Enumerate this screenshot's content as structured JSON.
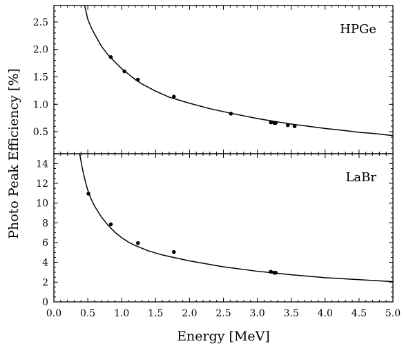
{
  "chart_data": {
    "type": "scatter",
    "xlabel": "Energy [MeV]",
    "ylabel": "Photo Peak Efficiency [%]",
    "xlim": [
      0.0,
      5.0
    ],
    "xticks": [
      "0.0",
      "0.5",
      "1.0",
      "1.5",
      "2.0",
      "2.5",
      "3.0",
      "3.5",
      "4.0",
      "4.5",
      "5.0"
    ],
    "xtick_values": [
      0.0,
      0.5,
      1.0,
      1.5,
      2.0,
      2.5,
      3.0,
      3.5,
      4.0,
      4.5,
      5.0
    ],
    "panels": [
      {
        "label": "HPGe",
        "ylim": [
          0.1,
          2.8
        ],
        "yticks": [
          "0.5",
          "1.0",
          "1.5",
          "2.0",
          "2.5"
        ],
        "ytick_values": [
          0.5,
          1.0,
          1.5,
          2.0,
          2.5
        ],
        "points": {
          "x": [
            0.84,
            1.04,
            1.24,
            1.77,
            2.61,
            3.2,
            3.25,
            3.27,
            3.45,
            3.55
          ],
          "y": [
            1.86,
            1.6,
            1.45,
            1.14,
            0.83,
            0.67,
            0.66,
            0.66,
            0.62,
            0.6
          ]
        },
        "curve": {
          "x": [
            0.45,
            0.5,
            0.55,
            0.6,
            0.7,
            0.8,
            0.9,
            1.0,
            1.1,
            1.2,
            1.3,
            1.5,
            1.7,
            2.0,
            2.3,
            2.6,
            3.0,
            3.5,
            4.0,
            4.3,
            4.5,
            4.7,
            5.0
          ],
          "y": [
            2.82,
            2.55,
            2.4,
            2.28,
            2.06,
            1.9,
            1.77,
            1.65,
            1.55,
            1.45,
            1.37,
            1.24,
            1.13,
            1.02,
            0.92,
            0.84,
            0.74,
            0.64,
            0.56,
            0.52,
            0.49,
            0.47,
            0.43
          ]
        }
      },
      {
        "label": "LaBr",
        "ylim": [
          0,
          15
        ],
        "yticks": [
          "0",
          "2",
          "4",
          "6",
          "8",
          "10",
          "12",
          "14"
        ],
        "ytick_values": [
          0,
          2,
          4,
          6,
          8,
          10,
          12,
          14
        ],
        "points": {
          "x": [
            0.51,
            0.84,
            1.24,
            1.77,
            3.2,
            3.25,
            3.27
          ],
          "y": [
            10.95,
            7.85,
            5.95,
            5.05,
            3.05,
            2.95,
            2.95
          ]
        },
        "curve": {
          "x": [
            0.38,
            0.42,
            0.46,
            0.5,
            0.55,
            0.6,
            0.7,
            0.8,
            0.9,
            1.0,
            1.1,
            1.2,
            1.4,
            1.6,
            1.8,
            2.0,
            2.5,
            3.0,
            3.5,
            4.0,
            4.5,
            5.0
          ],
          "y": [
            15.0,
            13.5,
            12.3,
            11.3,
            10.4,
            9.7,
            8.6,
            7.75,
            7.05,
            6.5,
            6.05,
            5.7,
            5.15,
            4.75,
            4.45,
            4.15,
            3.55,
            3.1,
            2.75,
            2.45,
            2.25,
            2.05
          ]
        }
      }
    ]
  }
}
